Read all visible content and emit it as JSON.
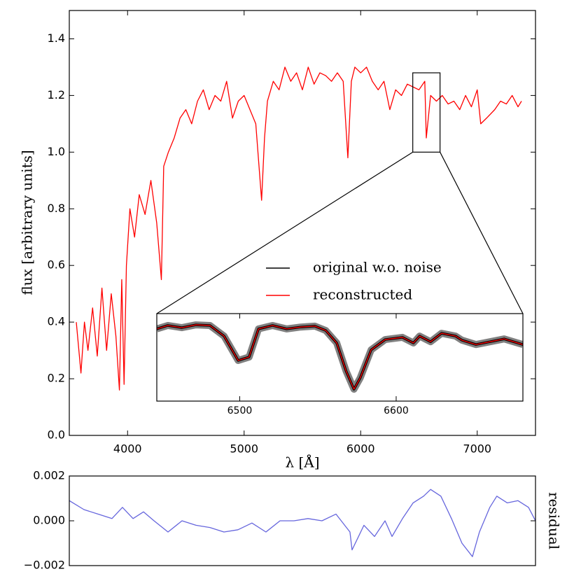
{
  "chart_data": [
    {
      "type": "line",
      "xlabel": "λ [Å]",
      "ylabel": "flux [arbitrary units]",
      "xlim": [
        3500,
        7500
      ],
      "ylim": [
        0,
        1.5
      ],
      "xticks": [
        4000,
        5000,
        6000,
        7000
      ],
      "yticks": [
        {
          "value": 0,
          "label": "0.0"
        },
        0.2,
        0.4,
        0.6,
        0.8,
        {
          "value": 1,
          "label": "1.0"
        },
        1.2,
        1.4
      ],
      "color": "#ff0000",
      "x": [
        3560,
        3600,
        3630,
        3660,
        3700,
        3740,
        3780,
        3820,
        3860,
        3900,
        3930,
        3950,
        3970,
        3990,
        4020,
        4060,
        4100,
        4150,
        4200,
        4250,
        4290,
        4310,
        4350,
        4400,
        4450,
        4500,
        4550,
        4600,
        4650,
        4700,
        4750,
        4800,
        4850,
        4900,
        4950,
        5000,
        5050,
        5100,
        5150,
        5175,
        5200,
        5250,
        5300,
        5350,
        5400,
        5450,
        5500,
        5550,
        5600,
        5650,
        5700,
        5750,
        5800,
        5850,
        5890,
        5920,
        5950,
        6000,
        6050,
        6100,
        6150,
        6200,
        6250,
        6300,
        6350,
        6400,
        6450,
        6500,
        6550,
        6563,
        6600,
        6650,
        6700,
        6750,
        6800,
        6850,
        6900,
        6950,
        7000,
        7030,
        7080,
        7150,
        7200,
        7250,
        7300,
        7350,
        7380
      ],
      "values": [
        0.4,
        0.22,
        0.4,
        0.3,
        0.45,
        0.28,
        0.52,
        0.3,
        0.5,
        0.35,
        0.16,
        0.55,
        0.18,
        0.6,
        0.8,
        0.7,
        0.85,
        0.78,
        0.9,
        0.75,
        0.55,
        0.95,
        1.0,
        1.05,
        1.12,
        1.15,
        1.1,
        1.18,
        1.22,
        1.15,
        1.2,
        1.18,
        1.25,
        1.12,
        1.18,
        1.2,
        1.15,
        1.1,
        0.83,
        1.05,
        1.18,
        1.25,
        1.22,
        1.3,
        1.25,
        1.28,
        1.22,
        1.3,
        1.24,
        1.28,
        1.27,
        1.25,
        1.28,
        1.25,
        0.98,
        1.25,
        1.3,
        1.28,
        1.3,
        1.25,
        1.22,
        1.25,
        1.15,
        1.22,
        1.2,
        1.24,
        1.23,
        1.22,
        1.25,
        1.05,
        1.2,
        1.18,
        1.2,
        1.17,
        1.18,
        1.15,
        1.2,
        1.16,
        1.22,
        1.1,
        1.12,
        1.15,
        1.18,
        1.17,
        1.2,
        1.16,
        1.18
      ]
    },
    {
      "type": "line",
      "xlim": [
        6447,
        6681
      ],
      "ylim": [
        1.0,
        1.28
      ],
      "xticks": [
        6500,
        6600
      ],
      "x": [
        6447,
        6454,
        6463,
        6472,
        6481,
        6490,
        6499,
        6506,
        6512,
        6521,
        6530,
        6539,
        6548,
        6555,
        6562,
        6568,
        6573,
        6577,
        6584,
        6593,
        6604,
        6611,
        6615,
        6622,
        6629,
        6638,
        6642,
        6651,
        6660,
        6669,
        6681
      ],
      "series": [
        {
          "name": "original w.o. noise",
          "color": "#000000",
          "values": [
            1.231,
            1.242,
            1.235,
            1.244,
            1.242,
            1.208,
            1.13,
            1.141,
            1.231,
            1.242,
            1.231,
            1.237,
            1.24,
            1.226,
            1.186,
            1.096,
            1.038,
            1.074,
            1.164,
            1.197,
            1.204,
            1.186,
            1.208,
            1.19,
            1.217,
            1.208,
            1.195,
            1.181,
            1.19,
            1.199,
            1.181
          ]
        },
        {
          "name": "reconstructed",
          "color": "#ff0000",
          "values": [
            1.231,
            1.242,
            1.235,
            1.244,
            1.242,
            1.208,
            1.13,
            1.141,
            1.231,
            1.242,
            1.231,
            1.237,
            1.24,
            1.226,
            1.186,
            1.096,
            1.038,
            1.074,
            1.164,
            1.197,
            1.204,
            1.186,
            1.208,
            1.19,
            1.217,
            1.208,
            1.195,
            1.181,
            1.19,
            1.199,
            1.181
          ]
        }
      ]
    },
    {
      "type": "line",
      "ylabel": "residual",
      "xlim": [
        3500,
        7500
      ],
      "ylim": [
        -0.002,
        0.002
      ],
      "yticks": [
        {
          "value": -0.002,
          "label": "−0.002"
        },
        {
          "value": 0,
          "label": "0.000"
        },
        0.002
      ],
      "color": "#6666dd",
      "x": [
        3500,
        3626,
        3746,
        3866,
        3956,
        4047,
        4137,
        4227,
        4347,
        4467,
        4587,
        4707,
        4827,
        4947,
        5067,
        5187,
        5308,
        5428,
        5548,
        5668,
        5788,
        5908,
        5926,
        6028,
        6119,
        6209,
        6269,
        6359,
        6450,
        6540,
        6600,
        6688,
        6779,
        6869,
        6959,
        7019,
        7108,
        7168,
        7258,
        7349,
        7440,
        7500
      ],
      "values": [
        0.0009,
        0.0005,
        0.0003,
        0.0001,
        0.0006,
        0.0001,
        0.0004,
        0.0,
        -0.0005,
        0.0,
        -0.0002,
        -0.0003,
        -0.0005,
        -0.0004,
        -0.0001,
        -0.0005,
        0.0,
        0.0,
        0.0001,
        0.0,
        0.0003,
        -0.0005,
        -0.0013,
        -0.0002,
        -0.0007,
        0.0,
        -0.0007,
        0.0001,
        0.0008,
        0.0011,
        0.0014,
        0.0011,
        0.0001,
        -0.001,
        -0.0016,
        -0.0005,
        0.0006,
        0.0011,
        0.0008,
        0.0009,
        0.0006,
        0.0
      ]
    }
  ]
}
